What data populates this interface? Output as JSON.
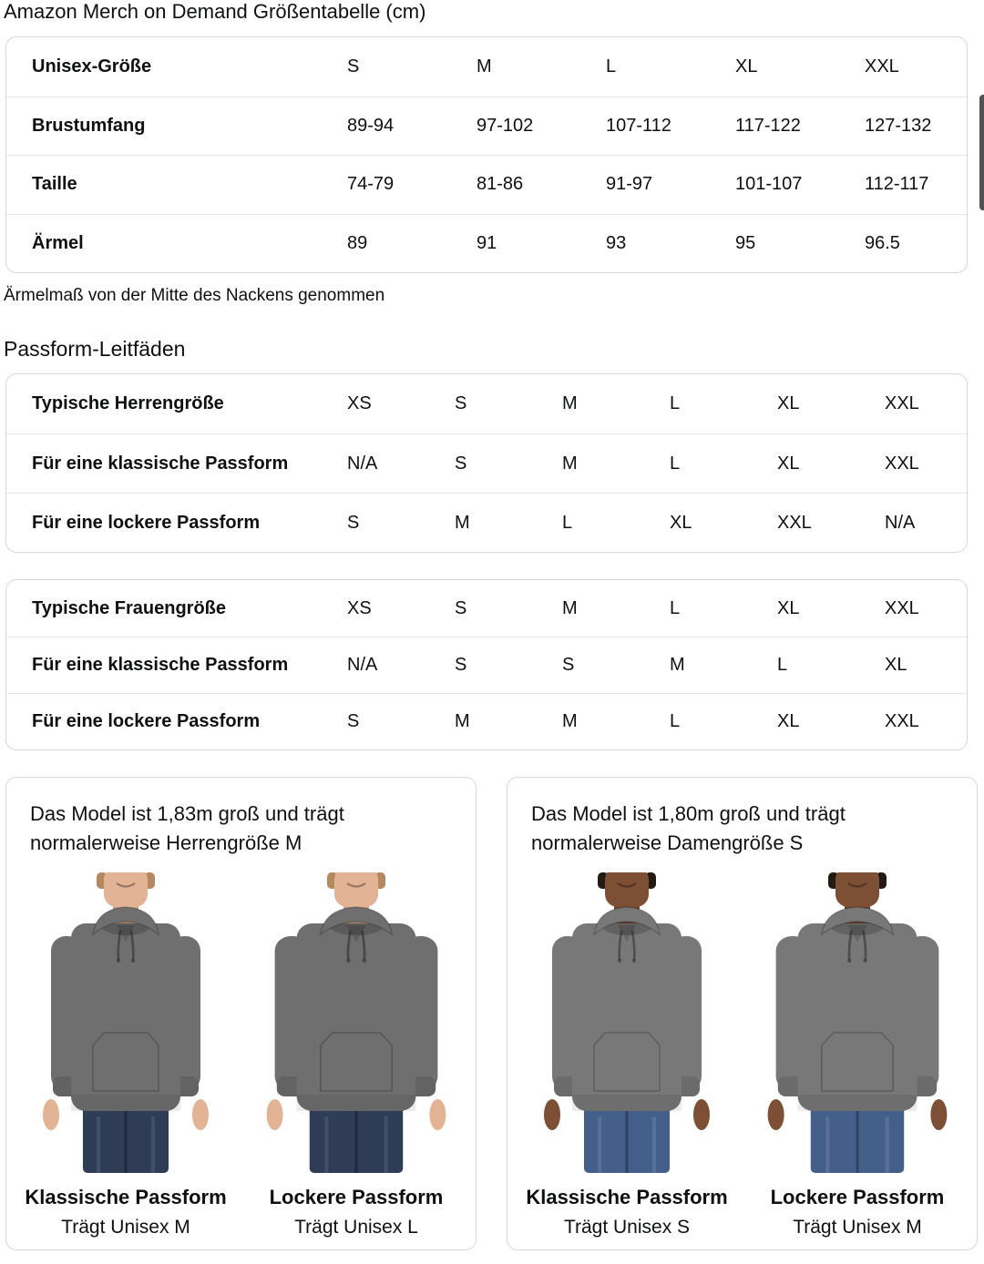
{
  "title": "Amazon Merch on Demand Größentabelle (cm)",
  "size_note": "Ärmelmaß von der Mitte des Nackens genommen",
  "fit_heading": "Passform-Leitfäden",
  "size_table": {
    "rows": [
      {
        "label": "Unisex-Größe",
        "values": [
          "S",
          "M",
          "L",
          "XL",
          "XXL"
        ]
      },
      {
        "label": "Brustumfang",
        "values": [
          "89-94",
          "97-102",
          "107-112",
          "117-122",
          "127-132"
        ]
      },
      {
        "label": "Taille",
        "values": [
          "74-79",
          "81-86",
          "91-97",
          "101-107",
          "112-117"
        ]
      },
      {
        "label": "Ärmel",
        "values": [
          "89",
          "91",
          "93",
          "95",
          "96.5"
        ]
      }
    ]
  },
  "fit_tables": [
    {
      "name": "men",
      "rows": [
        {
          "label": "Typische Herrengröße",
          "values": [
            "XS",
            "S",
            "M",
            "L",
            "XL",
            "XXL"
          ]
        },
        {
          "label": "Für eine klassische Passform",
          "values": [
            "N/A",
            "S",
            "M",
            "L",
            "XL",
            "XXL"
          ]
        },
        {
          "label": "Für eine lockere Passform",
          "values": [
            "S",
            "M",
            "L",
            "XL",
            "XXL",
            "N/A"
          ]
        }
      ]
    },
    {
      "name": "women",
      "rows": [
        {
          "label": "Typische Frauengröße",
          "values": [
            "XS",
            "S",
            "M",
            "L",
            "XL",
            "XXL"
          ]
        },
        {
          "label": "Für eine klassische Passform",
          "values": [
            "N/A",
            "S",
            "S",
            "M",
            "L",
            "XL"
          ]
        },
        {
          "label": "Für eine lockere Passform",
          "values": [
            "S",
            "M",
            "M",
            "L",
            "XL",
            "XXL"
          ]
        }
      ]
    }
  ],
  "model_cards": [
    {
      "description": "Das Model ist 1,83m groß und trägt normalerweise Herrengröße M",
      "models": [
        {
          "fit": "classic",
          "fit_label": "Klassische Passform",
          "size_label": "Trägt Unisex M",
          "colors": {
            "skin": "#e2b394",
            "hair": "#b3895f",
            "hoodie": "#6f6f6f",
            "jeans": "#2e3c55"
          }
        },
        {
          "fit": "loose",
          "fit_label": "Lockere Passform",
          "size_label": "Trägt Unisex L",
          "colors": {
            "skin": "#e2b394",
            "hair": "#b3895f",
            "hoodie": "#6f6f6f",
            "jeans": "#2e3c55"
          }
        }
      ]
    },
    {
      "description": "Das Model ist 1,80m groß und trägt normalerweise Damengröße S",
      "models": [
        {
          "fit": "classic",
          "fit_label": "Klassische Passform",
          "size_label": "Trägt Unisex S",
          "colors": {
            "skin": "#7d4f35",
            "hair": "#241a14",
            "hoodie": "#787878",
            "jeans": "#44608a"
          }
        },
        {
          "fit": "loose",
          "fit_label": "Lockere Passform",
          "size_label": "Trägt Unisex M",
          "colors": {
            "skin": "#7d4f35",
            "hair": "#241a14",
            "hoodie": "#787878",
            "jeans": "#44608a"
          }
        }
      ]
    }
  ],
  "ui_colors": {
    "text": "#0f1111",
    "card_border": "#d5d9d9",
    "row_divider": "#e7e7e7",
    "scrollbar": "#4e5156"
  }
}
